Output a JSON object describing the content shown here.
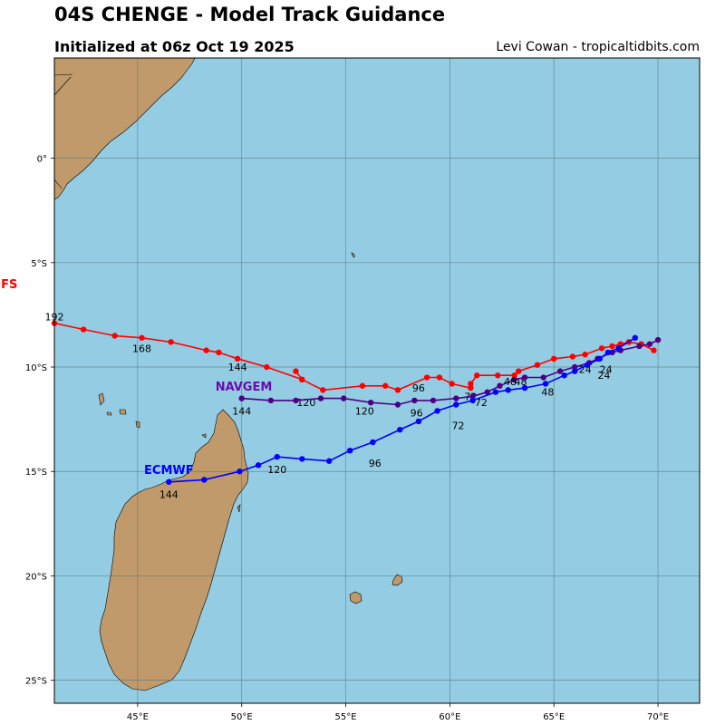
{
  "header": {
    "title": "04S CHENGE - Model Track Guidance",
    "subtitle": "Initialized at 06z Oct 19 2025",
    "credit": "Levi Cowan - tropicaltidbits.com"
  },
  "axes": {
    "lon_ticks": [
      "45°E",
      "50°E",
      "55°E",
      "60°E",
      "65°E",
      "70°E"
    ],
    "lat_ticks": [
      "0°",
      "5°S",
      "10°S",
      "15°S",
      "20°S",
      "25°S"
    ]
  },
  "colors": {
    "ocean": "#94cde3",
    "land": "#c19a6b",
    "grid": "#4f6f7a"
  },
  "tracks": [
    {
      "name": "GFS",
      "color": "#ff0000",
      "label_color": "#ff0000",
      "lon": [
        69.8,
        69.2,
        68.6,
        68.2,
        67.8,
        67.3,
        66.5,
        65.9,
        65.0,
        64.2,
        63.3,
        63.1,
        62.3,
        61.3,
        61.0,
        61.0,
        60.1,
        59.5,
        58.9,
        57.5,
        56.9,
        55.8,
        53.9,
        52.9,
        52.6,
        52.9,
        51.2,
        49.8,
        48.9,
        48.3,
        46.6,
        45.2,
        43.9,
        42.4,
        41.0
      ],
      "lat": [
        -9.2,
        -8.9,
        -8.8,
        -8.9,
        -9.0,
        -9.1,
        -9.4,
        -9.5,
        -9.6,
        -9.9,
        -10.2,
        -10.4,
        -10.4,
        -10.4,
        -10.8,
        -11.0,
        -10.8,
        -10.5,
        -10.5,
        -11.1,
        -10.9,
        -10.9,
        -11.1,
        -10.6,
        -10.2,
        -10.6,
        -10.0,
        -9.6,
        -9.3,
        -9.2,
        -8.8,
        -8.6,
        -8.5,
        -8.2,
        -7.9
      ],
      "labels": [
        {
          "text": "24",
          "lon": 67.5,
          "lat": -10.1
        },
        {
          "text": "48",
          "lon": 63.4,
          "lat": -10.7
        },
        {
          "text": "72",
          "lon": 61.0,
          "lat": -11.4
        },
        {
          "text": "96",
          "lon": 58.5,
          "lat": -11.0
        },
        {
          "text": "120",
          "lon": 53.1,
          "lat": -11.7
        },
        {
          "text": "144",
          "lon": 49.8,
          "lat": -10.0
        },
        {
          "text": "168",
          "lon": 45.2,
          "lat": -9.1
        },
        {
          "text": "192",
          "lon": 41.0,
          "lat": -7.6
        }
      ]
    },
    {
      "name": "NAVGEM",
      "color": "#4b0082",
      "label_color": "#6a0dad",
      "lon": [
        70.0,
        69.6,
        69.1,
        68.2,
        67.8,
        67.1,
        66.7,
        66.0,
        65.3,
        64.5,
        63.6,
        63.1,
        62.4,
        61.8,
        61.1,
        60.3,
        59.2,
        58.3,
        57.5,
        56.2,
        54.9,
        53.8,
        52.6,
        51.4,
        50.0
      ],
      "lat": [
        -8.7,
        -8.9,
        -9.0,
        -9.2,
        -9.3,
        -9.6,
        -9.8,
        -10.0,
        -10.2,
        -10.5,
        -10.5,
        -10.6,
        -10.9,
        -11.2,
        -11.4,
        -11.5,
        -11.6,
        -11.6,
        -11.8,
        -11.7,
        -11.5,
        -11.5,
        -11.6,
        -11.6,
        -11.5
      ],
      "labels": [
        {
          "text": "24",
          "lon": 66.5,
          "lat": -10.1
        },
        {
          "text": "48",
          "lon": 62.9,
          "lat": -10.7
        },
        {
          "text": "72",
          "lon": 61.5,
          "lat": -11.7
        },
        {
          "text": "96",
          "lon": 58.4,
          "lat": -12.2
        },
        {
          "text": "120",
          "lon": 55.9,
          "lat": -12.1
        },
        {
          "text": "144",
          "lon": 50.0,
          "lat": -12.1
        }
      ]
    },
    {
      "name": "ECMWF",
      "color": "#0000ff",
      "label_color": "#0000ff",
      "lon": [
        68.9,
        68.1,
        67.6,
        67.2,
        66.6,
        66.0,
        65.5,
        64.6,
        63.6,
        62.8,
        62.2,
        61.1,
        60.3,
        59.4,
        58.5,
        57.6,
        56.3,
        55.2,
        54.2,
        52.9,
        51.7,
        50.8,
        49.9,
        48.2,
        46.5
      ],
      "lat": [
        -8.6,
        -9.1,
        -9.3,
        -9.6,
        -9.9,
        -10.2,
        -10.4,
        -10.8,
        -11.0,
        -11.1,
        -11.2,
        -11.6,
        -11.8,
        -12.1,
        -12.6,
        -13.0,
        -13.6,
        -14.0,
        -14.5,
        -14.4,
        -14.3,
        -14.7,
        -15.0,
        -15.4,
        -15.5
      ],
      "labels": [
        {
          "text": "24",
          "lon": 67.4,
          "lat": -10.4
        },
        {
          "text": "48",
          "lon": 64.7,
          "lat": -11.2
        },
        {
          "text": "72",
          "lon": 60.4,
          "lat": -12.8
        },
        {
          "text": "96",
          "lon": 56.4,
          "lat": -14.6
        },
        {
          "text": "120",
          "lon": 51.7,
          "lat": -14.9
        },
        {
          "text": "144",
          "lon": 46.5,
          "lat": -16.1
        }
      ]
    }
  ],
  "model_names": [
    {
      "text": "GFS",
      "color": "#ff0000",
      "lon": 38.6,
      "lat": -6.0
    },
    {
      "text": "NAVGEM",
      "color": "#6a0dad",
      "lon": 50.1,
      "lat": -10.9
    },
    {
      "text": "ECMWF",
      "color": "#0000ff",
      "lon": 46.5,
      "lat": -14.9
    }
  ]
}
